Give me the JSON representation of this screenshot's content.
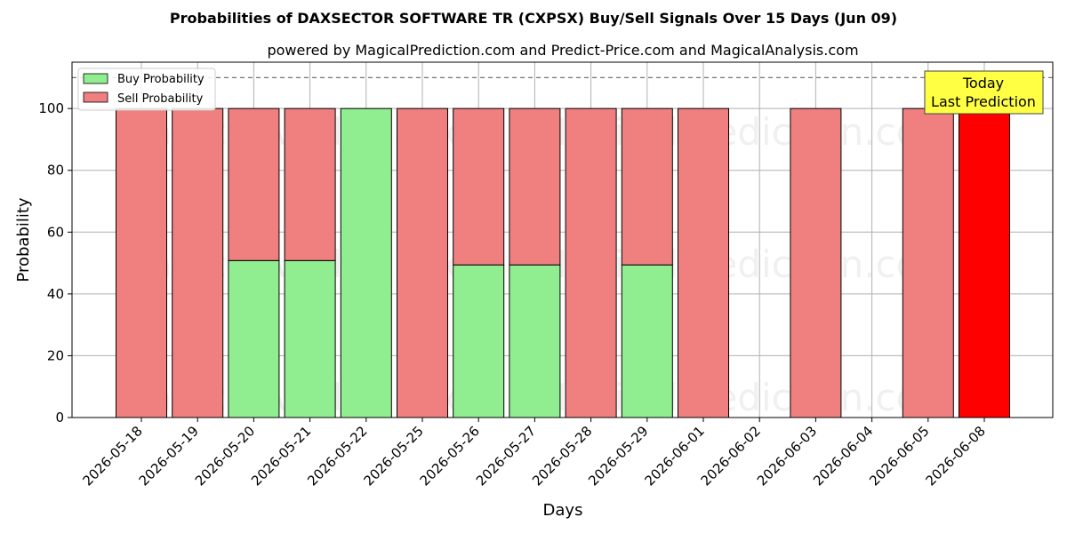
{
  "chart_data": {
    "type": "bar",
    "stacked": true,
    "title": "Probabilities of DAXSECTOR SOFTWARE TR (CXPSX) Buy/Sell Signals Over 15 Days (Jun 09)",
    "subtitle": "powered by MagicalPrediction.com and Predict-Price.com and MagicalAnalysis.com",
    "xlabel": "Days",
    "ylabel": "Probability",
    "ylim": [
      0,
      115
    ],
    "yticks": [
      0,
      20,
      40,
      60,
      80,
      100
    ],
    "grid": true,
    "legend_placement": "top-left",
    "reference_line": 110,
    "categories": [
      "2026-05-18",
      "2026-05-19",
      "2026-05-20",
      "2026-05-21",
      "2026-05-22",
      "2026-05-25",
      "2026-05-26",
      "2026-05-27",
      "2026-05-28",
      "2026-05-29",
      "2026-06-01",
      "2026-06-02",
      "2026-06-03",
      "2026-06-04",
      "2026-06-05",
      "2026-06-08"
    ],
    "series": [
      {
        "name": "Buy Probability",
        "color": "#90ee90",
        "values": [
          0,
          0,
          50.8,
          50.8,
          100,
          0,
          49.4,
          49.4,
          0,
          49.4,
          0,
          0,
          0,
          0,
          0,
          0
        ]
      },
      {
        "name": "Sell Probability",
        "color": "#f08080",
        "values": [
          100,
          100,
          49.2,
          49.2,
          0,
          100,
          50.6,
          50.6,
          100,
          50.6,
          100,
          0,
          100,
          0,
          100,
          100
        ]
      }
    ],
    "highlight": {
      "category": "2026-06-08",
      "color": "#ff0000"
    },
    "annotation": {
      "lines": [
        "Today",
        "Last Prediction"
      ],
      "background": "#ffff44"
    },
    "watermarks": [
      "MagicalAnalysis.com",
      "MagicalPrediction.com"
    ]
  }
}
